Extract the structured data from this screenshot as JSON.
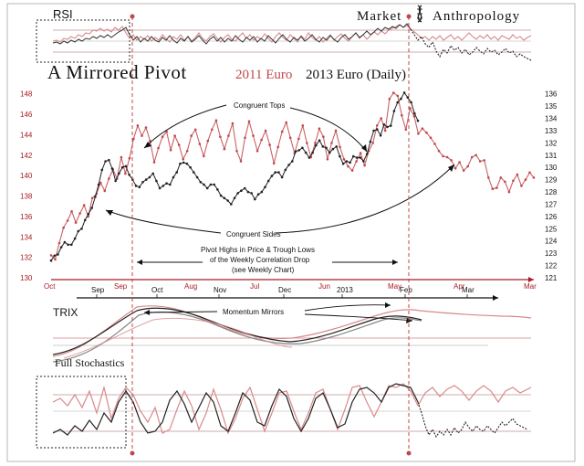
{
  "header": {
    "brand_left": "Market",
    "brand_right": "Anthropology",
    "title_main": "A Mirrored Pivot",
    "title_red": "2011 Euro",
    "title_black": "2013 Euro (Daily)"
  },
  "panels": {
    "rsi_label": "RSI",
    "trix_label": "TRIX",
    "stoch_label": "Full Stochastics"
  },
  "annotations": {
    "tops": "Congruent Tops",
    "sides": "Congruent Sides",
    "pivot_line1": "Pivot Highs in Price & Trough Lows",
    "pivot_line2": "of the  Weekly Correlation Drop",
    "pivot_line3": "(see Weekly Chart)",
    "momentum": "Momentum Mirrors"
  },
  "colors": {
    "red_series": "#c0474a",
    "red_light": "#d9898b",
    "black_series": "#222222",
    "axis_red": "#a51d24"
  },
  "chart_data": [
    {
      "type": "line",
      "title": "A Mirrored Pivot — 2011 Euro / 2013 Euro (Daily)",
      "x_labels_2011": [
        "Oct",
        "Sep",
        "Aug",
        "Jul",
        "Jun",
        "May",
        "Apr",
        "Mar"
      ],
      "x_labels_2013": [
        "Sep",
        "Oct",
        "Nov",
        "Dec",
        "2013",
        "Feb",
        "Mar"
      ],
      "y_left_ticks": [
        130,
        132,
        134,
        136,
        138,
        140,
        142,
        144,
        146,
        148
      ],
      "y_right_ticks": [
        121,
        122,
        123,
        124,
        125,
        126,
        127,
        128,
        129,
        130,
        131,
        132,
        133,
        134,
        135,
        136
      ],
      "ylim_left": [
        130,
        148.6
      ],
      "ylim_right": [
        121,
        136.5
      ],
      "series": [
        {
          "name": "2011 Euro",
          "axis": "left",
          "values": [
            132.2,
            131.8,
            133.4,
            134.9,
            135.6,
            136.5,
            135.4,
            136.3,
            137.1,
            136.0,
            137.8,
            138.2,
            139.3,
            138.5,
            139.7,
            140.6,
            139.7,
            141.8,
            140.2,
            141.7,
            143.6,
            144.9,
            143.9,
            144.7,
            143.4,
            141.3,
            142.7,
            143.8,
            144.3,
            142.5,
            143.9,
            143.0,
            141.6,
            142.4,
            143.9,
            144.5,
            143.1,
            141.9,
            143.4,
            144.5,
            145.4,
            143.8,
            142.6,
            143.9,
            145.1,
            142.4,
            141.4,
            143.7,
            145.3,
            143.9,
            142.4,
            143.5,
            144.4,
            143.0,
            141.2,
            142.8,
            144.3,
            145.2,
            143.7,
            142.2,
            143.6,
            144.9,
            143.2,
            141.8,
            143.2,
            144.6,
            143.8,
            141.6,
            143.2,
            144.4,
            142.8,
            141.6,
            140.9,
            140.5,
            141.4,
            142.2,
            141.0,
            142.4,
            143.2,
            144.9,
            145.6,
            144.4,
            147.5,
            148.1,
            147.8,
            145.9,
            144.5,
            146.6,
            145.8,
            144.1,
            144.6,
            144.2,
            143.7,
            143.1,
            142.4,
            141.9,
            141.8,
            141.5,
            140.7,
            141.3,
            140.5,
            140.9,
            141.8,
            142.0,
            141.4,
            141.5,
            139.8,
            138.7,
            138.8,
            139.8,
            139.4,
            138.4,
            139.5,
            140.1,
            139.0,
            139.6,
            140.3,
            139.8
          ]
        },
        {
          "name": "2013 Euro",
          "axis": "right",
          "values": [
            122.4,
            122.8,
            122.9,
            123.5,
            123.9,
            123.7,
            123.7,
            124.2,
            124.8,
            125.0,
            125.7,
            126.2,
            126.7,
            127.6,
            128.6,
            129.8,
            130.5,
            130.6,
            129.9,
            128.9,
            129.5,
            130.0,
            130.1,
            129.4,
            129.0,
            128.5,
            128.4,
            128.8,
            129.0,
            129.2,
            129.5,
            128.9,
            128.3,
            128.5,
            128.7,
            128.6,
            129.2,
            129.6,
            130.3,
            130.4,
            130.3,
            130.0,
            129.6,
            129.2,
            128.8,
            128.6,
            128.3,
            128.6,
            128.6,
            128.2,
            127.7,
            127.5,
            127.3,
            127.0,
            127.5,
            127.9,
            128.1,
            128.3,
            128.0,
            127.9,
            127.4,
            127.8,
            128.0,
            128.4,
            128.9,
            129.3,
            129.6,
            129.6,
            129.2,
            129.8,
            130.2,
            130.5,
            131.3,
            131.4,
            131.6,
            131.2,
            130.8,
            131.2,
            131.8,
            132.2,
            131.7,
            131.6,
            131.2,
            131.5,
            131.7,
            130.9,
            130.3,
            130.5,
            130.4,
            130.9,
            130.8,
            130.8,
            130.5,
            131.1,
            132.1,
            133.0,
            133.1,
            132.6,
            133.5,
            133.3,
            133.4,
            134.6,
            135.3,
            135.6,
            136.1,
            135.7,
            135.3,
            134.4,
            133.8
          ]
        }
      ]
    }
  ]
}
